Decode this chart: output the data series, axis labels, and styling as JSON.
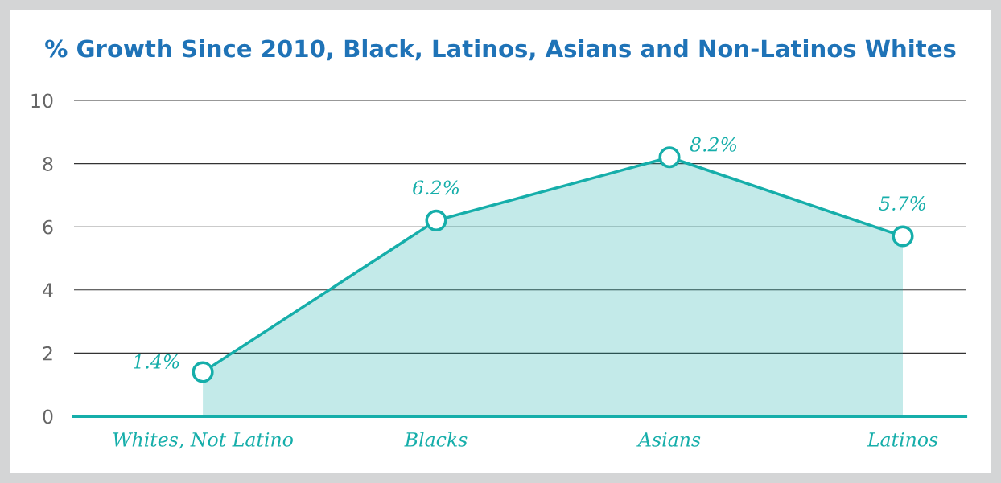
{
  "chart_data": {
    "type": "area",
    "title": "% Growth Since 2010, Black, Latinos, Asians and Non-Latinos Whites",
    "categories": [
      "Whites, Not Latino",
      "Blacks",
      "Asians",
      "Latinos"
    ],
    "series": [
      {
        "color": "#16aeaa",
        "values": [
          1.4,
          6.2,
          8.2,
          5.7
        ],
        "value_labels": [
          "1.4%",
          "6.2%",
          "8.2%",
          "5.7%"
        ]
      }
    ],
    "ylim": [
      0,
      10
    ],
    "yticks": [
      0,
      2,
      4,
      6,
      8,
      10
    ],
    "grid": "y",
    "marker": "circle",
    "line_style": "solid"
  }
}
